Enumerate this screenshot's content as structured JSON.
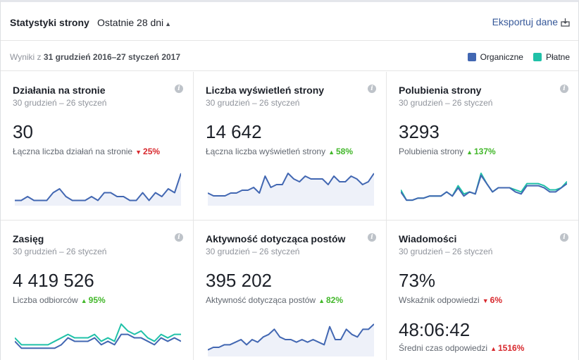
{
  "header": {
    "title": "Statystyki strony",
    "period": "Ostatnie 28 dni",
    "export_label": "Eksportuj dane"
  },
  "range": {
    "prefix": "Wyniki z",
    "dates": "31 grudzień 2016–27 styczeń 2017"
  },
  "legend": {
    "organic": "Organiczne",
    "paid": "Płatne",
    "organic_color": "#4267b2",
    "paid_color": "#20c1a8"
  },
  "cards": [
    {
      "title": "Działania na stronie",
      "date": "30 grudzień – 26 styczeń",
      "value": "30",
      "label": "Łączna liczba działań na stronie",
      "change": "25%",
      "dir": "down",
      "organic": [
        1,
        1,
        2,
        1,
        1,
        1,
        3,
        4,
        2,
        1,
        1,
        1,
        2,
        1,
        3,
        3,
        2,
        2,
        1,
        1,
        3,
        1,
        3,
        2,
        4,
        3,
        8
      ],
      "paid": null
    },
    {
      "title": "Liczba wyświetleń strony",
      "date": "30 grudzień – 26 styczeń",
      "value": "14 642",
      "label": "Łączna liczba wyświetleń strony",
      "change": "58%",
      "dir": "up",
      "organic": [
        4,
        3,
        3,
        3,
        4,
        4,
        5,
        5,
        6,
        4,
        10,
        6,
        7,
        7,
        11,
        9,
        8,
        10,
        9,
        9,
        9,
        7,
        10,
        8,
        8,
        10,
        9,
        7,
        8,
        11
      ],
      "paid": null
    },
    {
      "title": "Polubienia strony",
      "date": "30 grudzień – 26 styczeń",
      "value": "3293",
      "label": "Polubienia strony",
      "change": "137%",
      "dir": "up",
      "organic": [
        3,
        1,
        1,
        1.5,
        1.5,
        2,
        2,
        2,
        3,
        2,
        4,
        2,
        3,
        2.5,
        7,
        5,
        3,
        4,
        4,
        4,
        3,
        2.5,
        4.5,
        4.5,
        4.5,
        4,
        3,
        3,
        4,
        5
      ],
      "paid": [
        3.5,
        1,
        1,
        1.5,
        1.5,
        2,
        2,
        2,
        3,
        2,
        4.5,
        2.5,
        3,
        2.5,
        7.5,
        5,
        3,
        4,
        4,
        4,
        3.5,
        3,
        5,
        5,
        5,
        4.5,
        3.5,
        3.5,
        4,
        5.5
      ]
    },
    {
      "title": "Zasięg",
      "date": "30 grudzień – 26 styczeń",
      "value": "4 419 526",
      "label": "Liczba odbiorców",
      "change": "95%",
      "dir": "up",
      "organic": [
        4,
        2,
        2,
        2,
        2,
        2,
        2,
        3,
        5,
        4,
        4,
        4,
        5,
        3,
        4,
        3,
        6,
        6,
        5,
        5,
        4,
        3,
        5,
        4,
        5,
        4
      ],
      "paid": [
        5,
        3,
        3,
        3,
        3,
        3,
        4,
        5,
        6,
        5,
        5,
        5,
        6,
        4,
        5,
        4,
        9,
        7,
        6,
        7,
        5,
        4,
        6,
        5,
        6,
        6
      ]
    },
    {
      "title": "Aktywność dotycząca postów",
      "date": "30 grudzień – 26 styczeń",
      "value": "395 202",
      "label": "Aktywność dotycząca postów",
      "change": "82%",
      "dir": "up",
      "organic": [
        2,
        3,
        3,
        4,
        4,
        5,
        6,
        4,
        6,
        5,
        7,
        8,
        10,
        7,
        6,
        6,
        5,
        6,
        5,
        6,
        5,
        4,
        11,
        6,
        6,
        10,
        8,
        7,
        10,
        10,
        12
      ],
      "paid": null
    },
    {
      "title": "Wiadomości",
      "date": "30 grudzień – 26 styczeń",
      "value": "73%",
      "label": "Wskaźnik odpowiedzi",
      "change": "6%",
      "dir": "down",
      "value2": "48:06:42",
      "label2": "Średni czas odpowiedzi",
      "change2": "1516%",
      "dir2": "up",
      "organic": null,
      "paid": null
    }
  ]
}
